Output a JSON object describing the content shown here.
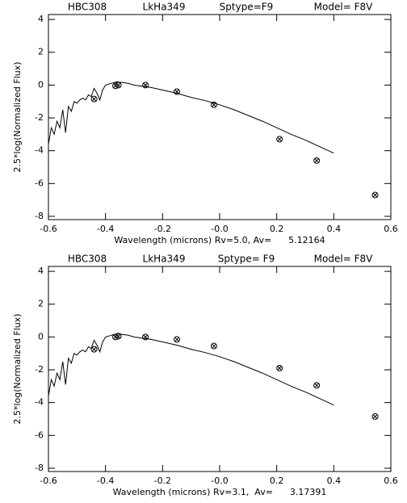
{
  "chart_data": [
    {
      "type": "scatter",
      "title": [
        "HBC308",
        "LkHa349",
        "Sptype=F9",
        "Model= F8V"
      ],
      "xlabel": "Wavelength (microns) Rv=5.0, Av=      5.12164",
      "ylabel": "2.5*log(Normalized Flux)",
      "xlim": [
        -0.6,
        0.6
      ],
      "ylim": [
        -8.2,
        4.3
      ],
      "xticks": [
        -0.6,
        -0.4,
        -0.2,
        {
          "value": 0,
          "label": "-0.0"
        },
        0.2,
        0.4,
        0.6
      ],
      "yticks": [
        -8,
        -6,
        -4,
        -2,
        0,
        2,
        4
      ],
      "series": [
        {
          "type": "line",
          "color": "#000000",
          "x": [
            -0.6,
            -0.59,
            -0.58,
            -0.57,
            -0.56,
            -0.55,
            -0.54,
            -0.53,
            -0.52,
            -0.51,
            -0.5,
            -0.49,
            -0.48,
            -0.47,
            -0.46,
            -0.45,
            -0.44,
            -0.43,
            -0.42,
            -0.41,
            -0.4,
            -0.38,
            -0.36,
            -0.34,
            -0.32,
            -0.3,
            -0.28,
            -0.26,
            -0.24,
            -0.2,
            -0.15,
            -0.1,
            -0.05,
            0.0,
            0.05,
            0.1,
            0.15,
            0.2,
            0.25,
            0.3,
            0.35,
            0.4
          ],
          "values": [
            -3.6,
            -2.6,
            -3.0,
            -2.2,
            -2.6,
            -1.5,
            -2.9,
            -1.3,
            -1.6,
            -1.0,
            -1.1,
            -0.9,
            -0.8,
            -0.9,
            -0.6,
            -0.7,
            -0.2,
            -0.5,
            -0.9,
            -0.3,
            0.0,
            0.1,
            0.2,
            0.15,
            0.1,
            0.0,
            -0.05,
            -0.1,
            -0.15,
            -0.3,
            -0.5,
            -0.75,
            -0.95,
            -1.2,
            -1.5,
            -1.85,
            -2.2,
            -2.6,
            -3.0,
            -3.35,
            -3.75,
            -4.15
          ]
        },
        {
          "type": "points",
          "color": "#000000",
          "x": [
            -0.44,
            -0.365,
            -0.355,
            -0.26,
            -0.15,
            -0.02,
            0.21,
            0.34,
            0.545
          ],
          "values": [
            -0.85,
            -0.05,
            0.0,
            0.0,
            -0.4,
            -1.2,
            -3.3,
            -4.6,
            -6.7
          ]
        }
      ]
    },
    {
      "type": "scatter",
      "title": [
        "HBC308",
        "LkHa349",
        "Sptype= F9",
        "Model= F8V"
      ],
      "xlabel": "Wavelength (microns) Rv=3.1,  Av=      3.17391",
      "ylabel": "2.5*log(Normalized Flux)",
      "xlim": [
        -0.6,
        0.6
      ],
      "ylim": [
        -8.2,
        4.3
      ],
      "xticks": [
        -0.6,
        -0.4,
        -0.2,
        {
          "value": 0,
          "label": "-0.0"
        },
        0.2,
        0.4,
        0.6
      ],
      "yticks": [
        -8,
        -6,
        -4,
        -2,
        0,
        2,
        4
      ],
      "series": [
        {
          "type": "line",
          "color": "#000000",
          "x": [
            -0.6,
            -0.59,
            -0.58,
            -0.57,
            -0.56,
            -0.55,
            -0.54,
            -0.53,
            -0.52,
            -0.51,
            -0.5,
            -0.49,
            -0.48,
            -0.47,
            -0.46,
            -0.45,
            -0.44,
            -0.43,
            -0.42,
            -0.41,
            -0.4,
            -0.38,
            -0.36,
            -0.34,
            -0.32,
            -0.3,
            -0.28,
            -0.26,
            -0.24,
            -0.2,
            -0.15,
            -0.1,
            -0.05,
            0.0,
            0.05,
            0.1,
            0.15,
            0.2,
            0.25,
            0.3,
            0.35,
            0.4
          ],
          "values": [
            -3.6,
            -2.6,
            -3.0,
            -2.2,
            -2.6,
            -1.5,
            -2.9,
            -1.3,
            -1.6,
            -1.0,
            -1.1,
            -0.9,
            -0.8,
            -0.9,
            -0.6,
            -0.7,
            -0.2,
            -0.5,
            -0.9,
            -0.3,
            0.0,
            0.1,
            0.2,
            0.15,
            0.1,
            0.0,
            -0.05,
            -0.1,
            -0.15,
            -0.3,
            -0.5,
            -0.75,
            -0.95,
            -1.2,
            -1.5,
            -1.85,
            -2.2,
            -2.6,
            -3.0,
            -3.35,
            -3.75,
            -4.15
          ]
        },
        {
          "type": "points",
          "color": "#000000",
          "x": [
            -0.44,
            -0.365,
            -0.355,
            -0.26,
            -0.15,
            -0.02,
            0.21,
            0.34,
            0.545
          ],
          "values": [
            -0.75,
            0.0,
            0.05,
            0.0,
            -0.15,
            -0.55,
            -1.9,
            -2.95,
            -4.85
          ]
        }
      ]
    }
  ]
}
